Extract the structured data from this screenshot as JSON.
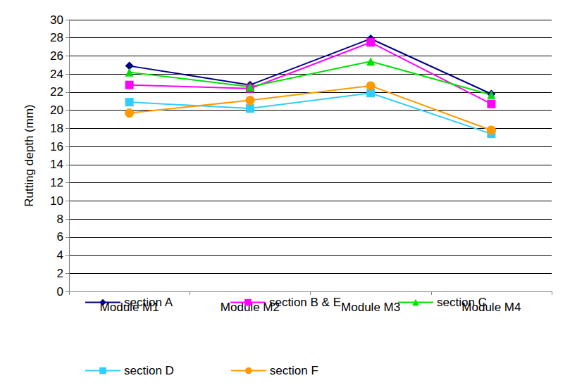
{
  "chart_data": {
    "type": "line",
    "y_label": "Rutting depth (mm)",
    "categories": [
      "Module M1",
      "Module M2",
      "Module M3",
      "Module M4"
    ],
    "series": [
      {
        "name": "section A",
        "color": "#000080",
        "marker": "diamond",
        "values": [
          24.9,
          22.8,
          27.9,
          21.8
        ]
      },
      {
        "name": "section B & E",
        "color": "#ff00ff",
        "marker": "square",
        "values": [
          22.8,
          22.4,
          27.5,
          20.7
        ]
      },
      {
        "name": "section C",
        "color": "#00e000",
        "marker": "triangle",
        "values": [
          24.2,
          22.6,
          25.4,
          21.7
        ]
      },
      {
        "name": "section D",
        "color": "#33ccff",
        "marker": "square",
        "values": [
          20.9,
          20.2,
          21.9,
          17.4
        ]
      },
      {
        "name": "section F",
        "color": "#ff9900",
        "marker": "circle",
        "values": [
          19.7,
          21.1,
          22.7,
          17.8
        ]
      }
    ],
    "ylim": [
      0,
      30
    ],
    "yticks": [
      0,
      2,
      4,
      6,
      8,
      10,
      12,
      14,
      16,
      18,
      20,
      22,
      24,
      26,
      28,
      30
    ],
    "grid": true,
    "legend": "bottom"
  }
}
